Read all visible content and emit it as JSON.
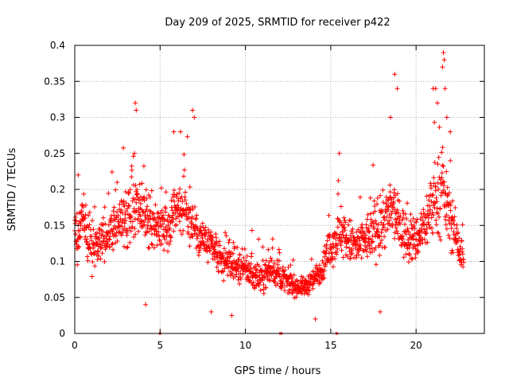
{
  "chart_data": {
    "type": "scatter",
    "title": "Day 209 of 2025, SRMTID for receiver p422",
    "xlabel": "GPS time / hours",
    "ylabel": "SRMTID / TECUs",
    "xlim": [
      0,
      24
    ],
    "ylim": [
      0,
      0.4
    ],
    "xticks": [
      0,
      5,
      10,
      15,
      20
    ],
    "xtick_labels": [
      "0",
      "5",
      "10",
      "15",
      "20"
    ],
    "yticks": [
      0,
      0.05,
      0.1,
      0.15,
      0.2,
      0.25,
      0.3,
      0.35,
      0.4
    ],
    "ytick_labels": [
      "0",
      "0.05",
      "0.1",
      "0.15",
      "0.2",
      "0.25",
      "0.3",
      "0.35",
      "0.4"
    ],
    "grid": true,
    "marker": "+",
    "series_color": "#ff0000",
    "baseline_markers_x": [
      5.0,
      12.05,
      12.1,
      15.35
    ],
    "envelope": {
      "x": [
        0,
        0.5,
        1,
        1.5,
        2,
        2.5,
        3,
        3.5,
        4,
        4.5,
        5,
        5.5,
        6,
        6.5,
        7,
        7.5,
        8,
        8.5,
        9,
        9.5,
        10,
        10.5,
        11,
        11.5,
        12,
        12.5,
        13,
        13.5,
        14,
        14.5,
        15,
        15.5,
        16,
        16.5,
        17,
        17.5,
        18,
        18.5,
        19,
        19.5,
        20,
        20.5,
        21,
        21.5,
        22,
        22.5,
        22.8
      ],
      "y": [
        0.14,
        0.15,
        0.12,
        0.13,
        0.14,
        0.15,
        0.16,
        0.17,
        0.16,
        0.15,
        0.15,
        0.15,
        0.18,
        0.17,
        0.15,
        0.13,
        0.12,
        0.1,
        0.1,
        0.09,
        0.09,
        0.08,
        0.08,
        0.09,
        0.08,
        0.07,
        0.065,
        0.065,
        0.075,
        0.09,
        0.12,
        0.14,
        0.13,
        0.12,
        0.13,
        0.14,
        0.15,
        0.17,
        0.15,
        0.13,
        0.13,
        0.15,
        0.18,
        0.2,
        0.16,
        0.12,
        0.1
      ],
      "spread": [
        0.05,
        0.05,
        0.05,
        0.05,
        0.05,
        0.05,
        0.06,
        0.07,
        0.06,
        0.05,
        0.05,
        0.05,
        0.06,
        0.06,
        0.05,
        0.05,
        0.04,
        0.035,
        0.035,
        0.035,
        0.035,
        0.035,
        0.035,
        0.03,
        0.03,
        0.025,
        0.02,
        0.02,
        0.025,
        0.03,
        0.045,
        0.05,
        0.05,
        0.05,
        0.05,
        0.06,
        0.06,
        0.07,
        0.06,
        0.05,
        0.05,
        0.06,
        0.08,
        0.09,
        0.06,
        0.05,
        0.04
      ]
    },
    "peaks": [
      {
        "x": 3.55,
        "y": 0.32
      },
      {
        "x": 3.6,
        "y": 0.31
      },
      {
        "x": 3.5,
        "y": 0.25
      },
      {
        "x": 5.8,
        "y": 0.28
      },
      {
        "x": 6.2,
        "y": 0.28
      },
      {
        "x": 6.9,
        "y": 0.31
      },
      {
        "x": 7.0,
        "y": 0.3
      },
      {
        "x": 15.5,
        "y": 0.25
      },
      {
        "x": 18.5,
        "y": 0.3
      },
      {
        "x": 18.75,
        "y": 0.36
      },
      {
        "x": 18.9,
        "y": 0.34
      },
      {
        "x": 21.0,
        "y": 0.34
      },
      {
        "x": 21.15,
        "y": 0.34
      },
      {
        "x": 21.25,
        "y": 0.32
      },
      {
        "x": 21.6,
        "y": 0.39
      },
      {
        "x": 21.65,
        "y": 0.38
      },
      {
        "x": 21.55,
        "y": 0.37
      },
      {
        "x": 21.7,
        "y": 0.34
      },
      {
        "x": 21.8,
        "y": 0.3
      },
      {
        "x": 22.0,
        "y": 0.28
      },
      {
        "x": 0.2,
        "y": 0.22
      },
      {
        "x": 4.15,
        "y": 0.04
      },
      {
        "x": 8.0,
        "y": 0.03
      },
      {
        "x": 9.2,
        "y": 0.025
      },
      {
        "x": 14.1,
        "y": 0.02
      },
      {
        "x": 17.9,
        "y": 0.03
      }
    ]
  }
}
